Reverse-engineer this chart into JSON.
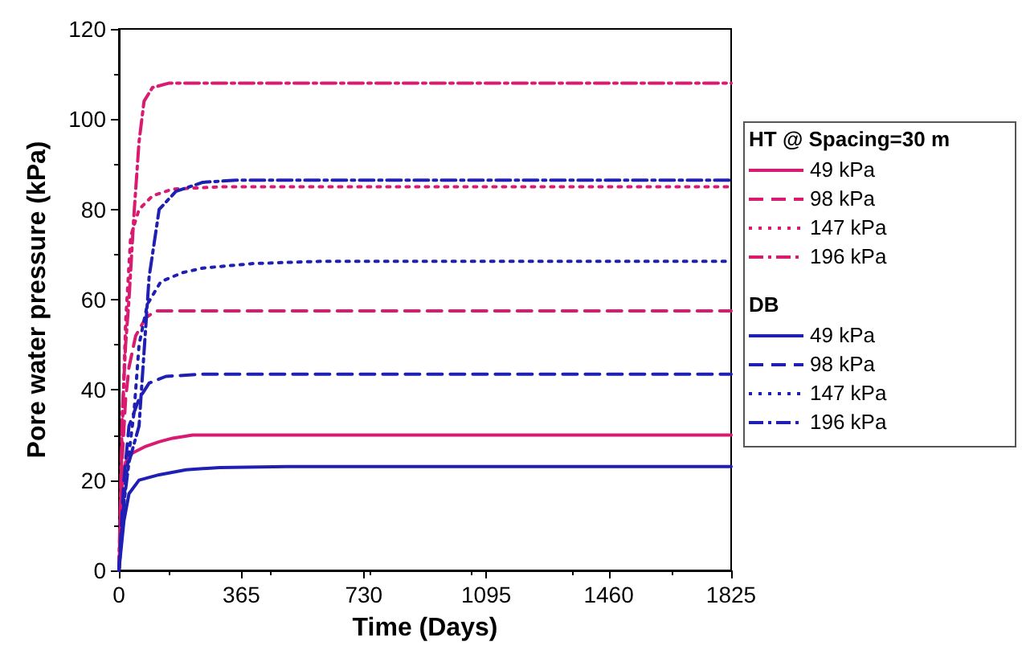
{
  "chart_data": {
    "type": "line",
    "xlabel": "Time (Days)",
    "ylabel": "Pore water pressure (kPa)",
    "xlim": [
      0,
      1825
    ],
    "xticks": [
      0,
      365,
      730,
      1095,
      1460,
      1825
    ],
    "ylim": [
      0,
      120
    ],
    "yticks": [
      0,
      20,
      40,
      60,
      80,
      100,
      120
    ],
    "grid": false,
    "legend": "right",
    "marker": "none",
    "legend_title": [
      "HT @ Spacing=30 m",
      "DB"
    ],
    "series": [
      {
        "name": "49 kPa",
        "color": "#d81b70",
        "line_style": "solid",
        "x": [
          0,
          10,
          20,
          40,
          80,
          120,
          160,
          220,
          1825
        ],
        "values": [
          0,
          20,
          24,
          26,
          27.5,
          28.5,
          29.3,
          30,
          30
        ]
      },
      {
        "name": "98 kPa",
        "color": "#d81b70",
        "line_style": "dashed",
        "x": [
          0,
          10,
          20,
          30,
          50,
          80,
          110,
          1825
        ],
        "values": [
          0,
          25,
          38,
          45,
          52,
          56,
          57.5,
          57.5
        ]
      },
      {
        "name": "147 kPa",
        "color": "#d81b70",
        "line_style": "dotted",
        "x": [
          0,
          10,
          20,
          35,
          60,
          100,
          160,
          300,
          1825
        ],
        "values": [
          0,
          30,
          55,
          74,
          80,
          83,
          84.5,
          85,
          85
        ]
      },
      {
        "name": "196 kPa",
        "color": "#d81b70",
        "line_style": "dashdot",
        "x": [
          0,
          10,
          20,
          30,
          45,
          60,
          75,
          100,
          150,
          1825
        ],
        "values": [
          0,
          35,
          50,
          60,
          79,
          95,
          104,
          107,
          108,
          108
        ]
      },
      {
        "name": "49 kPa",
        "color": "#1f1fb4",
        "line_style": "solid",
        "x": [
          0,
          15,
          30,
          60,
          120,
          200,
          300,
          500,
          1825
        ],
        "values": [
          0,
          11,
          17,
          20,
          21.2,
          22.3,
          22.8,
          23,
          23
        ]
      },
      {
        "name": "98 kPa",
        "color": "#1f1fb4",
        "line_style": "dashed",
        "x": [
          0,
          15,
          30,
          60,
          90,
          140,
          250,
          1825
        ],
        "values": [
          0,
          20,
          32,
          38,
          41.5,
          43,
          43.5,
          43.5
        ]
      },
      {
        "name": "147 kPa",
        "color": "#1f1fb4",
        "line_style": "dotted",
        "x": [
          0,
          20,
          45,
          60,
          85,
          125,
          190,
          250,
          400,
          600,
          1825
        ],
        "values": [
          0,
          20,
          35,
          50,
          59,
          64,
          66,
          67,
          68,
          68.5,
          68.5
        ]
      },
      {
        "name": "196 kPa",
        "color": "#1f1fb4",
        "line_style": "dashdot",
        "x": [
          0,
          15,
          30,
          60,
          90,
          120,
          170,
          250,
          350,
          1825
        ],
        "values": [
          0,
          15,
          24,
          32,
          65,
          80,
          84,
          86,
          86.5,
          86.5
        ]
      }
    ]
  }
}
